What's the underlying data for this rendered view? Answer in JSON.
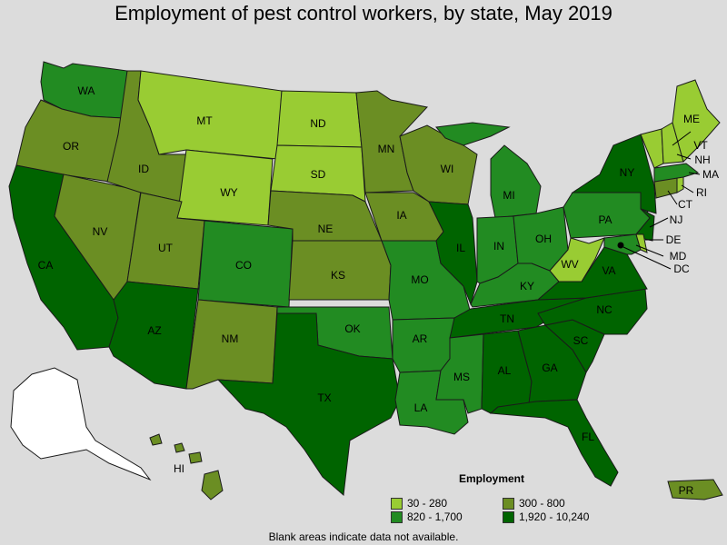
{
  "title": "Employment of pest control workers, by state, May 2019",
  "legend": {
    "title": "Employment",
    "items": [
      {
        "label": "30 - 280",
        "color": "#99cc33"
      },
      {
        "label": "300 - 800",
        "color": "#6b8e23"
      },
      {
        "label": "820 - 1,700",
        "color": "#228b22"
      },
      {
        "label": "1,920 - 10,240",
        "color": "#006400"
      }
    ]
  },
  "footnote": "Blank areas indicate data not available.",
  "states": {
    "WA": "820 - 1,700",
    "OR": "300 - 800",
    "CA": "1,920 - 10,240",
    "NV": "300 - 800",
    "ID": "300 - 800",
    "MT": "30 - 280",
    "WY": "30 - 280",
    "UT": "300 - 800",
    "AZ": "1,920 - 10,240",
    "CO": "820 - 1,700",
    "NM": "300 - 800",
    "ND": "30 - 280",
    "SD": "30 - 280",
    "NE": "300 - 800",
    "KS": "300 - 800",
    "OK": "820 - 1,700",
    "TX": "1,920 - 10,240",
    "MN": "300 - 800",
    "IA": "300 - 800",
    "MO": "820 - 1,700",
    "AR": "820 - 1,700",
    "LA": "820 - 1,700",
    "WI": "300 - 800",
    "IL": "1,920 - 10,240",
    "MI": "820 - 1,700",
    "IN": "820 - 1,700",
    "OH": "820 - 1,700",
    "KY": "820 - 1,700",
    "TN": "1,920 - 10,240",
    "MS": "820 - 1,700",
    "AL": "1,920 - 10,240",
    "GA": "1,920 - 10,240",
    "FL": "1,920 - 10,240",
    "SC": "1,920 - 10,240",
    "NC": "1,920 - 10,240",
    "VA": "1,920 - 10,240",
    "WV": "30 - 280",
    "PA": "820 - 1,700",
    "NY": "1,920 - 10,240",
    "NJ": "1,920 - 10,240",
    "DE": "30 - 280",
    "MD": "820 - 1,700",
    "DC": "30 - 280",
    "CT": "300 - 800",
    "RI": "30 - 280",
    "MA": "820 - 1,700",
    "VT": "30 - 280",
    "NH": "30 - 280",
    "ME": "30 - 280",
    "HI": "300 - 800",
    "PR": "300 - 800"
  }
}
